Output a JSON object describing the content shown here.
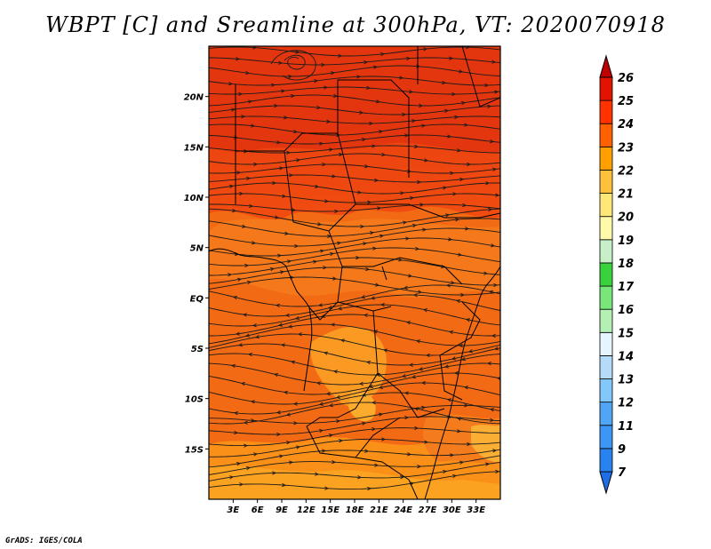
{
  "title": "WBPT [C] and Sreamline at 300hPa, VT: 2020070918",
  "footer": "GrADS: IGES/COLA",
  "map": {
    "lon_range": [
      0,
      36
    ],
    "lat_range": [
      -20,
      25
    ],
    "lat_ticks": [
      {
        "value": 20,
        "label": "20N"
      },
      {
        "value": 15,
        "label": "15N"
      },
      {
        "value": 10,
        "label": "10N"
      },
      {
        "value": 5,
        "label": "5N"
      },
      {
        "value": 0,
        "label": "EQ"
      },
      {
        "value": -5,
        "label": "5S"
      },
      {
        "value": -10,
        "label": "10S"
      },
      {
        "value": -15,
        "label": "15S"
      }
    ],
    "lon_ticks": [
      {
        "value": 3,
        "label": "3E"
      },
      {
        "value": 6,
        "label": "6E"
      },
      {
        "value": 9,
        "label": "9E"
      },
      {
        "value": 12,
        "label": "12E"
      },
      {
        "value": 15,
        "label": "15E"
      },
      {
        "value": 18,
        "label": "18E"
      },
      {
        "value": 21,
        "label": "21E"
      },
      {
        "value": 24,
        "label": "24E"
      },
      {
        "value": 27,
        "label": "27E"
      },
      {
        "value": 30,
        "label": "30E"
      },
      {
        "value": 33,
        "label": "33E"
      }
    ]
  },
  "colorbar": {
    "levels": [
      "7",
      "9",
      "11",
      "12",
      "13",
      "14",
      "15",
      "16",
      "17",
      "18",
      "19",
      "20",
      "21",
      "22",
      "23",
      "24",
      "25",
      "26"
    ],
    "colors": [
      "#1e6ee6",
      "#2882f0",
      "#3c96f5",
      "#50a5f5",
      "#82c8fa",
      "#b4dcfa",
      "#e6f5ff",
      "#b4f0b4",
      "#78e678",
      "#37d23c",
      "#c8f0c8",
      "#fffaaa",
      "#ffe878",
      "#ffc03c",
      "#ffa000",
      "#ff6000",
      "#ff3200",
      "#e11400",
      "#c00000"
    ]
  }
}
